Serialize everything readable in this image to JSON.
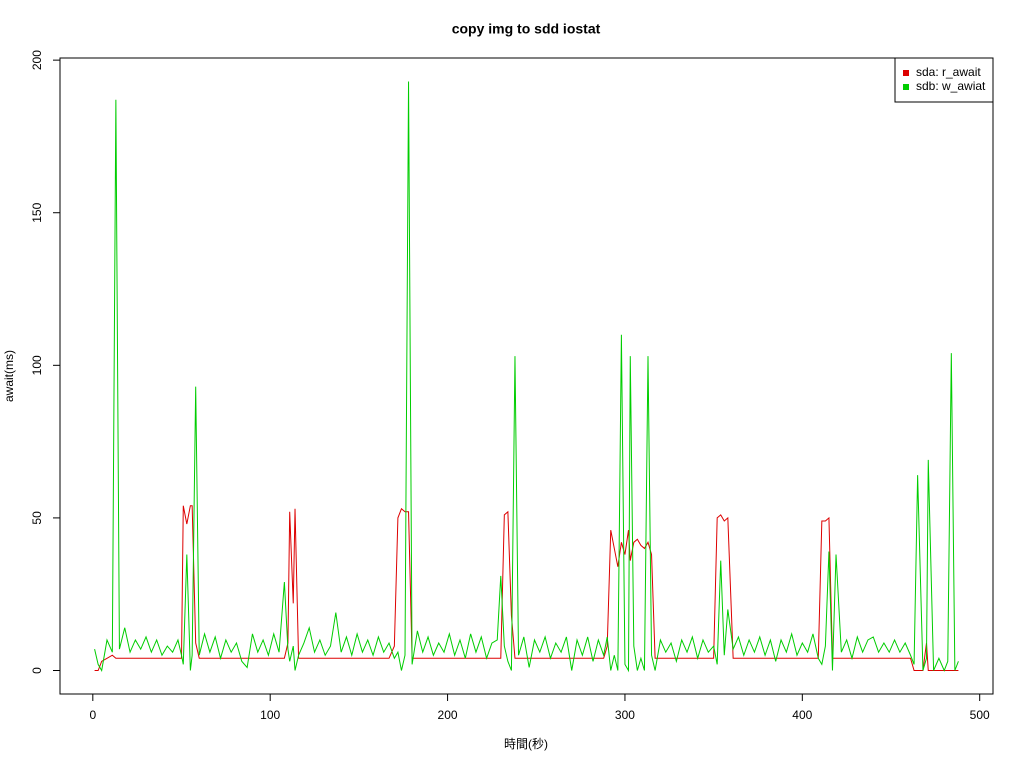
{
  "chart_data": {
    "type": "line",
    "title": "copy img to sdd iostat",
    "x_label": "時間(秒)",
    "y_label": "await(ms)",
    "x": [
      1,
      3,
      5,
      8,
      11,
      13,
      15,
      18,
      21,
      24,
      27,
      30,
      33,
      36,
      39,
      42,
      45,
      48,
      50,
      51,
      53,
      55,
      56,
      58,
      60,
      63,
      66,
      69,
      72,
      75,
      78,
      81,
      84,
      87,
      90,
      93,
      96,
      99,
      102,
      105,
      108,
      110,
      111,
      113,
      114,
      116,
      119,
      122,
      125,
      128,
      131,
      134,
      137,
      140,
      143,
      146,
      149,
      152,
      155,
      158,
      161,
      164,
      167,
      170,
      172,
      174,
      176,
      178,
      180,
      183,
      186,
      189,
      192,
      195,
      198,
      201,
      204,
      207,
      210,
      213,
      216,
      219,
      222,
      225,
      228,
      230,
      232,
      234,
      236,
      238,
      240,
      243,
      246,
      249,
      252,
      255,
      258,
      261,
      264,
      267,
      270,
      273,
      276,
      279,
      282,
      285,
      288,
      290,
      292,
      294,
      296,
      298,
      300,
      302,
      303,
      305,
      307,
      309,
      311,
      313,
      315,
      317,
      320,
      323,
      326,
      329,
      332,
      335,
      338,
      341,
      344,
      347,
      350,
      352,
      354,
      356,
      358,
      361,
      364,
      367,
      370,
      373,
      376,
      379,
      382,
      385,
      388,
      391,
      394,
      397,
      400,
      403,
      406,
      409,
      411,
      413,
      415,
      417,
      419,
      422,
      425,
      428,
      431,
      434,
      437,
      440,
      443,
      446,
      449,
      452,
      455,
      458,
      461,
      463,
      465,
      468,
      470,
      471,
      474,
      477,
      480,
      482,
      484,
      486,
      488
    ],
    "series": [
      {
        "name": "sda: r_await",
        "color": "#dd0000",
        "values": [
          0,
          0,
          3,
          4,
          5,
          4,
          4,
          4,
          4,
          4,
          4,
          4,
          4,
          4,
          4,
          4,
          4,
          4,
          4,
          54,
          48,
          54,
          54,
          9,
          4,
          4,
          4,
          4,
          4,
          4,
          4,
          4,
          4,
          4,
          4,
          4,
          4,
          4,
          4,
          4,
          4,
          9,
          52,
          22,
          53,
          4,
          4,
          4,
          4,
          4,
          4,
          4,
          4,
          4,
          4,
          4,
          4,
          4,
          4,
          4,
          4,
          4,
          4,
          8,
          50,
          53,
          52,
          52,
          4,
          4,
          4,
          4,
          4,
          4,
          4,
          4,
          4,
          4,
          4,
          4,
          4,
          4,
          4,
          4,
          4,
          4,
          51,
          52,
          18,
          4,
          4,
          4,
          4,
          4,
          4,
          4,
          4,
          4,
          4,
          4,
          4,
          4,
          4,
          4,
          4,
          4,
          4,
          8,
          46,
          40,
          34,
          42,
          38,
          46,
          36,
          42,
          43,
          41,
          40,
          42,
          38,
          4,
          4,
          4,
          4,
          4,
          4,
          4,
          4,
          4,
          4,
          4,
          4,
          50,
          51,
          49,
          50,
          4,
          4,
          4,
          4,
          4,
          4,
          4,
          4,
          4,
          4,
          4,
          4,
          4,
          4,
          4,
          4,
          4,
          49,
          49,
          50,
          4,
          4,
          4,
          4,
          4,
          4,
          4,
          4,
          4,
          4,
          4,
          4,
          4,
          4,
          4,
          4,
          0,
          0,
          0,
          9,
          0,
          0,
          0,
          0,
          0,
          0,
          0,
          0
        ]
      },
      {
        "name": "sdb: w_awiat",
        "color": "#00cd00",
        "values": [
          7,
          2,
          0,
          10,
          6,
          187,
          7,
          14,
          6,
          10,
          7,
          11,
          6,
          10,
          5,
          8,
          6,
          10,
          5,
          2,
          38,
          0,
          5,
          93,
          5,
          12,
          6,
          11,
          4,
          10,
          6,
          9,
          3,
          1,
          12,
          6,
          10,
          5,
          12,
          6,
          29,
          7,
          3,
          8,
          0,
          5,
          9,
          14,
          6,
          10,
          5,
          8,
          19,
          6,
          11,
          5,
          12,
          6,
          10,
          5,
          11,
          6,
          9,
          4,
          6,
          0,
          5,
          193,
          2,
          13,
          6,
          11,
          5,
          9,
          6,
          12,
          5,
          10,
          4,
          12,
          6,
          11,
          4,
          9,
          10,
          31,
          8,
          3,
          0,
          103,
          5,
          11,
          1,
          10,
          6,
          11,
          4,
          9,
          6,
          11,
          0,
          10,
          5,
          11,
          3,
          10,
          5,
          11,
          0,
          5,
          0,
          110,
          2,
          0,
          103,
          8,
          0,
          4,
          0,
          103,
          5,
          0,
          10,
          6,
          9,
          3,
          10,
          6,
          11,
          4,
          10,
          6,
          8,
          2,
          36,
          5,
          20,
          7,
          11,
          5,
          10,
          6,
          11,
          5,
          10,
          3,
          10,
          6,
          12,
          5,
          9,
          6,
          12,
          4,
          2,
          8,
          39,
          0,
          38,
          6,
          10,
          4,
          11,
          6,
          10,
          11,
          6,
          9,
          6,
          10,
          6,
          9,
          5,
          2,
          64,
          0,
          4,
          69,
          0,
          4,
          0,
          3,
          104,
          0,
          3
        ]
      }
    ],
    "xlim": [
      -18.5,
      507.5
    ],
    "ylim": [
      -7.7,
      200.7
    ],
    "xticks": [
      0,
      100,
      200,
      300,
      400,
      500
    ],
    "yticks": [
      0,
      50,
      100,
      150,
      200
    ],
    "legend": "top-right"
  }
}
